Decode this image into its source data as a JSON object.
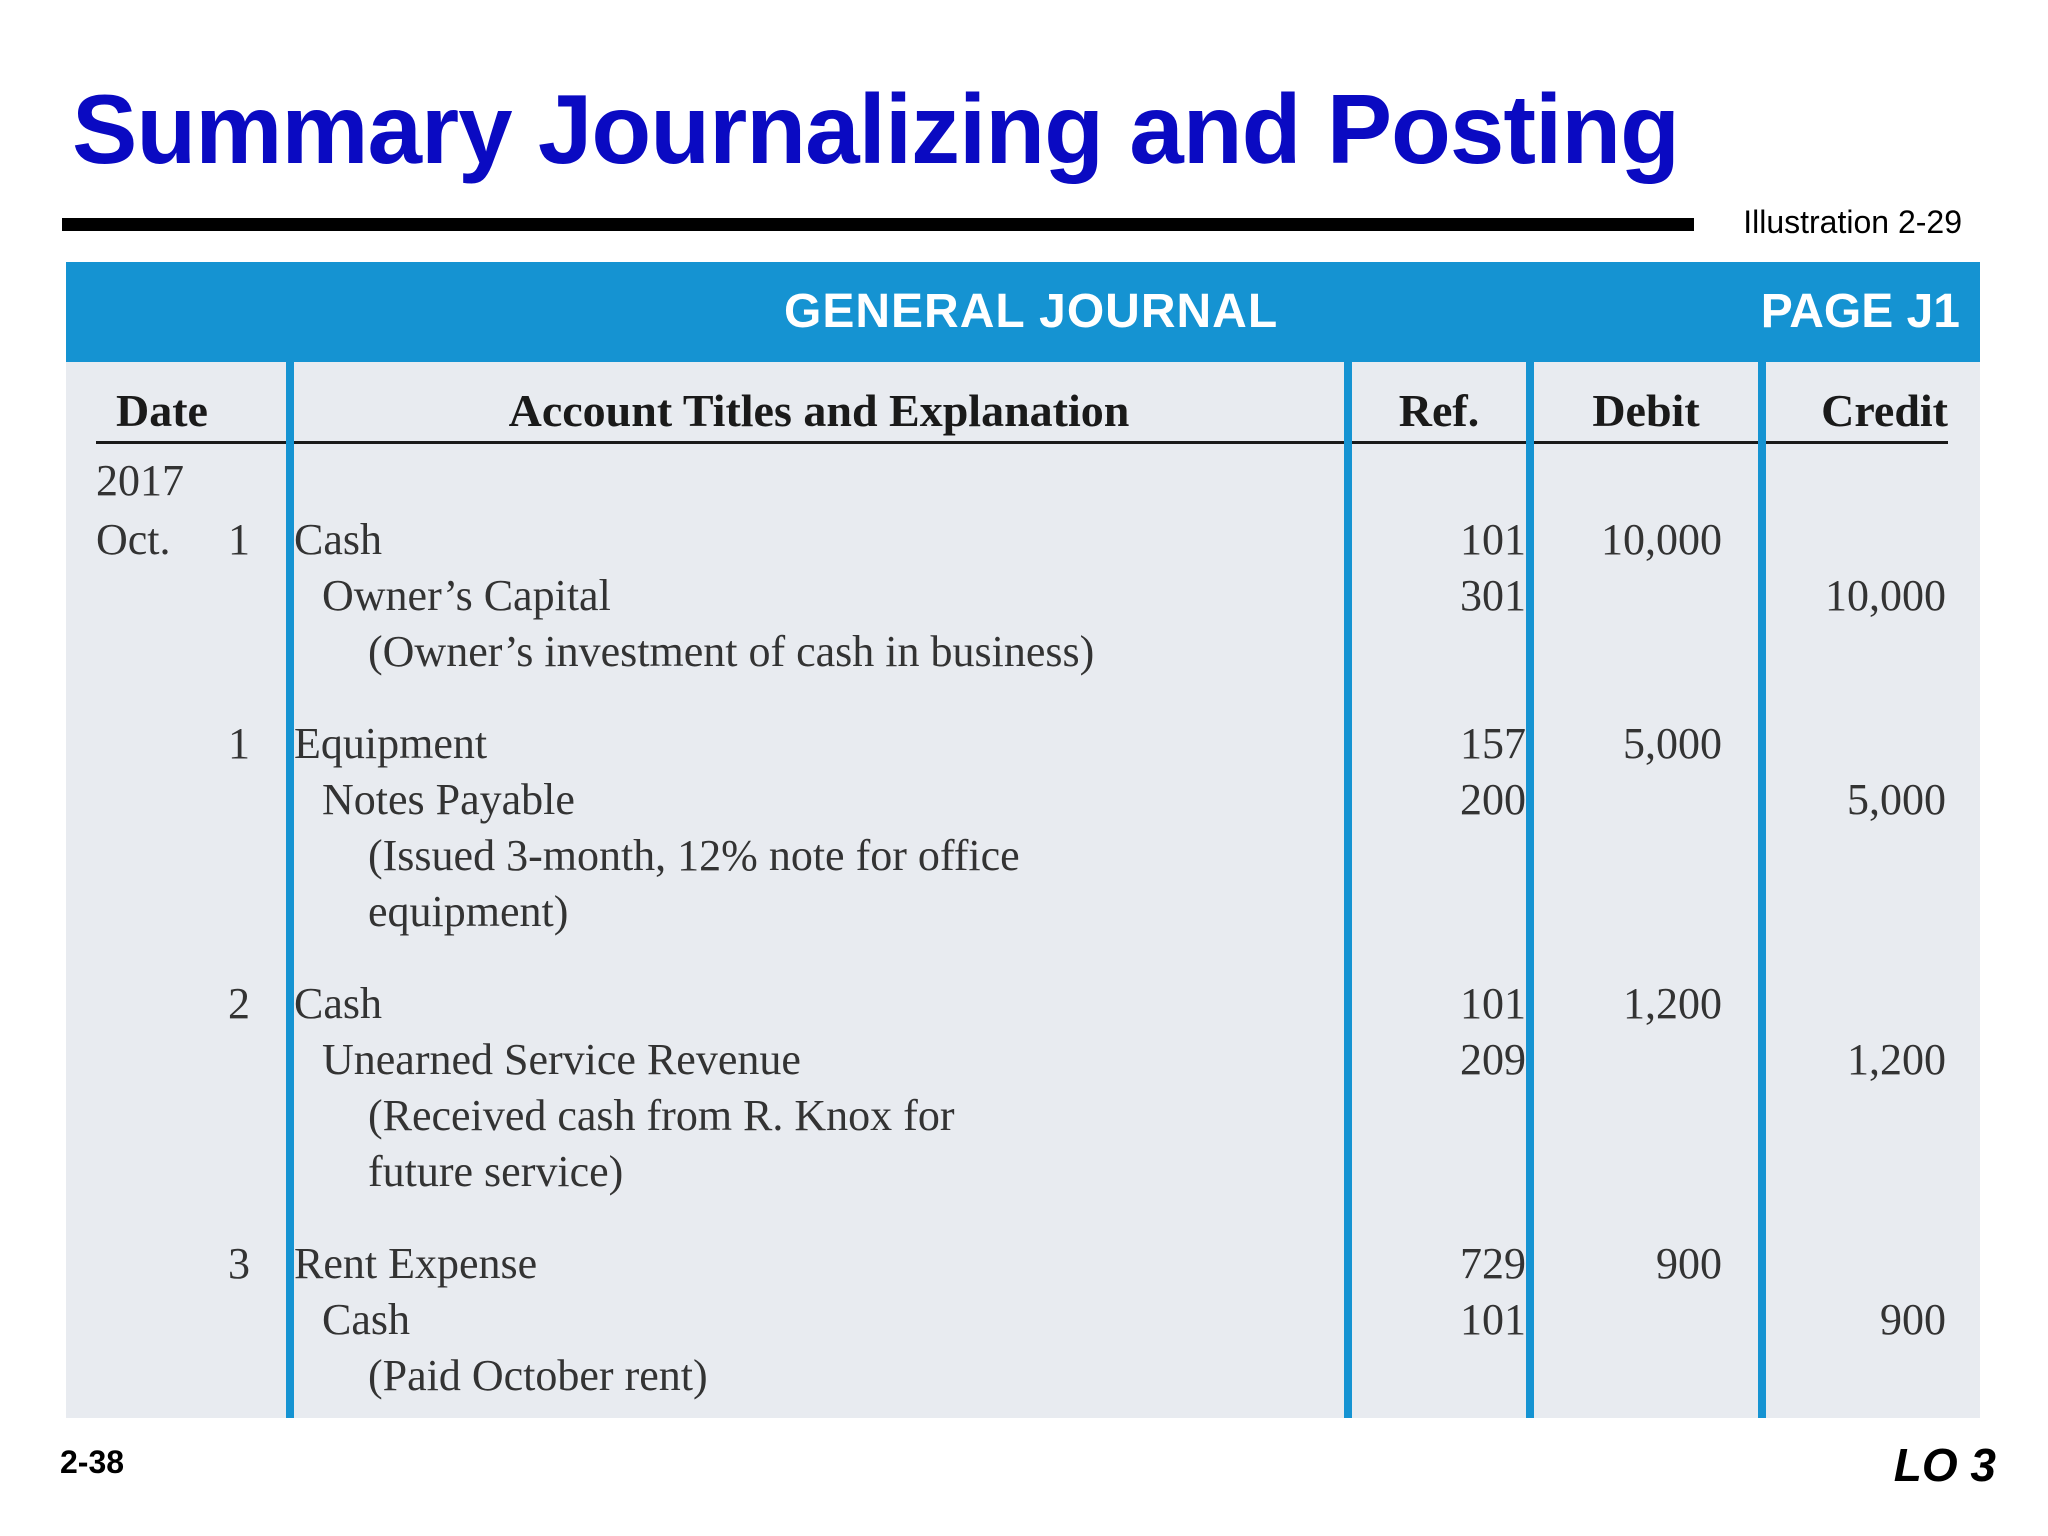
{
  "slide": {
    "title": "Summary Journalizing and Posting",
    "illustration": "Illustration 2-29",
    "page_number": "2-38",
    "learning_objective": "LO 3"
  },
  "journal": {
    "title": "GENERAL JOURNAL",
    "page": "PAGE J1",
    "headers": {
      "date": "Date",
      "account": "Account Titles and Explanation",
      "ref": "Ref.",
      "debit": "Debit",
      "credit": "Credit"
    },
    "year": "2017",
    "month": "Oct.",
    "entries": [
      {
        "day": "1",
        "lines": [
          {
            "text": "Cash",
            "ref": "101",
            "debit": "10,000",
            "credit": ""
          },
          {
            "text": "Owner’s Capital",
            "ref": "301",
            "debit": "",
            "credit": "10,000"
          },
          {
            "text": "(Owner’s investment of cash in business)",
            "ref": "",
            "debit": "",
            "credit": ""
          }
        ]
      },
      {
        "day": "1",
        "lines": [
          {
            "text": "Equipment",
            "ref": "157",
            "debit": "5,000",
            "credit": ""
          },
          {
            "text": "Notes Payable",
            "ref": "200",
            "debit": "",
            "credit": "5,000"
          },
          {
            "text": "(Issued 3-month, 12% note for office",
            "ref": "",
            "debit": "",
            "credit": ""
          },
          {
            "text": "equipment)",
            "ref": "",
            "debit": "",
            "credit": ""
          }
        ]
      },
      {
        "day": "2",
        "lines": [
          {
            "text": "Cash",
            "ref": "101",
            "debit": "1,200",
            "credit": ""
          },
          {
            "text": "Unearned Service Revenue",
            "ref": "209",
            "debit": "",
            "credit": "1,200"
          },
          {
            "text": "(Received cash from R. Knox for",
            "ref": "",
            "debit": "",
            "credit": ""
          },
          {
            "text": "future service)",
            "ref": "",
            "debit": "",
            "credit": ""
          }
        ]
      },
      {
        "day": "3",
        "lines": [
          {
            "text": "Rent Expense",
            "ref": "729",
            "debit": "900",
            "credit": ""
          },
          {
            "text": "Cash",
            "ref": "101",
            "debit": "",
            "credit": "900"
          },
          {
            "text": "(Paid October rent)",
            "ref": "",
            "debit": "",
            "credit": ""
          }
        ]
      }
    ]
  }
}
